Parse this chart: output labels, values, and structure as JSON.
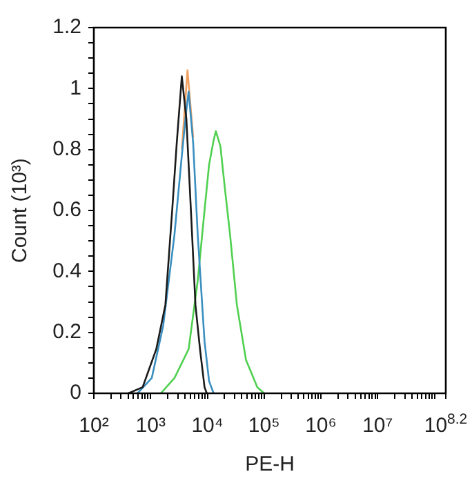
{
  "chart_data": {
    "type": "line",
    "xlabel": "PE-H",
    "ylabel": "Count (10³)",
    "log": "x",
    "grid": false,
    "legend": false,
    "marker": "none",
    "xlim": [
      100,
      158489319
    ],
    "xticks": [
      {
        "value": 100,
        "label": "10²"
      },
      {
        "value": 1000,
        "label": "10³"
      },
      {
        "value": 10000,
        "label": "10⁴"
      },
      {
        "value": 100000,
        "label": "10⁵"
      },
      {
        "value": 1000000,
        "label": "10⁶"
      },
      {
        "value": 10000000,
        "label": "10⁷"
      },
      {
        "value": 158489319,
        "label": "10$^{8.2}$"
      },
      {
        "value": 200,
        "label": null
      },
      {
        "value": 300,
        "label": null
      },
      {
        "value": 400,
        "label": null
      },
      {
        "value": 500,
        "label": null
      },
      {
        "value": 600,
        "label": null
      },
      {
        "value": 700,
        "label": null
      },
      {
        "value": 800,
        "label": null
      },
      {
        "value": 900,
        "label": null
      },
      {
        "value": 2000,
        "label": null
      },
      {
        "value": 3000,
        "label": null
      },
      {
        "value": 4000,
        "label": null
      },
      {
        "value": 5000,
        "label": null
      },
      {
        "value": 6000,
        "label": null
      },
      {
        "value": 7000,
        "label": null
      },
      {
        "value": 8000,
        "label": null
      },
      {
        "value": 9000,
        "label": null
      },
      {
        "value": 20000,
        "label": null
      },
      {
        "value": 30000,
        "label": null
      },
      {
        "value": 40000,
        "label": null
      },
      {
        "value": 50000,
        "label": null
      },
      {
        "value": 60000,
        "label": null
      },
      {
        "value": 70000,
        "label": null
      },
      {
        "value": 80000,
        "label": null
      },
      {
        "value": 90000,
        "label": null
      },
      {
        "value": 200000,
        "label": null
      },
      {
        "value": 300000,
        "label": null
      },
      {
        "value": 400000,
        "label": null
      },
      {
        "value": 500000,
        "label": null
      },
      {
        "value": 600000,
        "label": null
      },
      {
        "value": 700000,
        "label": null
      },
      {
        "value": 800000,
        "label": null
      },
      {
        "value": 900000,
        "label": null
      },
      {
        "value": 2000000,
        "label": null
      },
      {
        "value": 3000000,
        "label": null
      },
      {
        "value": 4000000,
        "label": null
      },
      {
        "value": 5000000,
        "label": null
      },
      {
        "value": 6000000,
        "label": null
      },
      {
        "value": 7000000,
        "label": null
      },
      {
        "value": 8000000,
        "label": null
      },
      {
        "value": 9000000,
        "label": null
      },
      {
        "value": 20000000,
        "label": null
      },
      {
        "value": 30000000,
        "label": null
      },
      {
        "value": 40000000,
        "label": null
      },
      {
        "value": 50000000,
        "label": null
      },
      {
        "value": 60000000,
        "label": null
      },
      {
        "value": 70000000,
        "label": null
      },
      {
        "value": 80000000,
        "label": null
      },
      {
        "value": 90000000,
        "label": null
      },
      {
        "value": 100000000,
        "label": null
      }
    ],
    "ylim": [
      0,
      1.2
    ],
    "yticks": [
      0,
      0.2,
      0.4,
      0.6,
      0.8,
      1,
      1.2,
      {
        "value": 0.05,
        "label": null
      },
      {
        "value": 0.1,
        "label": null
      },
      {
        "value": 0.15,
        "label": null
      },
      {
        "value": 0.25,
        "label": null
      },
      {
        "value": 0.3,
        "label": null
      },
      {
        "value": 0.35,
        "label": null
      },
      {
        "value": 0.45,
        "label": null
      },
      {
        "value": 0.5,
        "label": null
      },
      {
        "value": 0.55,
        "label": null
      },
      {
        "value": 0.65,
        "label": null
      },
      {
        "value": 0.7,
        "label": null
      },
      {
        "value": 0.75,
        "label": null
      },
      {
        "value": 0.85,
        "label": null
      },
      {
        "value": 0.9,
        "label": null
      },
      {
        "value": 0.95,
        "label": null
      },
      {
        "value": 1.05,
        "label": null
      },
      {
        "value": 1.1,
        "label": null
      },
      {
        "value": 1.15,
        "label": null
      }
    ],
    "series": [
      {
        "color": "#50d050",
        "x": [
          1514,
          2630,
          4677,
          6761,
          8913,
          10715,
          12882,
          14125,
          16982,
          20417,
          25119,
          33113,
          47863,
          75858,
          100000
        ],
        "values": [
          0,
          0.05,
          0.145,
          0.37,
          0.6,
          0.75,
          0.83,
          0.86,
          0.81,
          0.67,
          0.52,
          0.29,
          0.11,
          0.02,
          0
        ]
      },
      {
        "color": "#f0a060",
        "x": [
          3548,
          4467,
          5623
        ],
        "values": [
          0.8,
          1.06,
          0.84
        ]
      },
      {
        "color": "#3a8fc0",
        "x": [
          589,
          1047,
          1660,
          2630,
          3548,
          4266,
          4677,
          5623,
          6761,
          8913,
          10715,
          12882
        ],
        "values": [
          0,
          0.05,
          0.22,
          0.52,
          0.78,
          0.93,
          0.99,
          0.82,
          0.52,
          0.17,
          0.04,
          0
        ]
      },
      {
        "color": "#1a1a1a",
        "x": [
          407,
          724,
          1259,
          1820,
          2399,
          2884,
          3548,
          4266,
          5129,
          6166,
          7413,
          8913,
          9772
        ],
        "values": [
          0,
          0.02,
          0.145,
          0.29,
          0.6,
          0.82,
          1.04,
          0.9,
          0.6,
          0.29,
          0.145,
          0.02,
          0
        ]
      }
    ]
  }
}
